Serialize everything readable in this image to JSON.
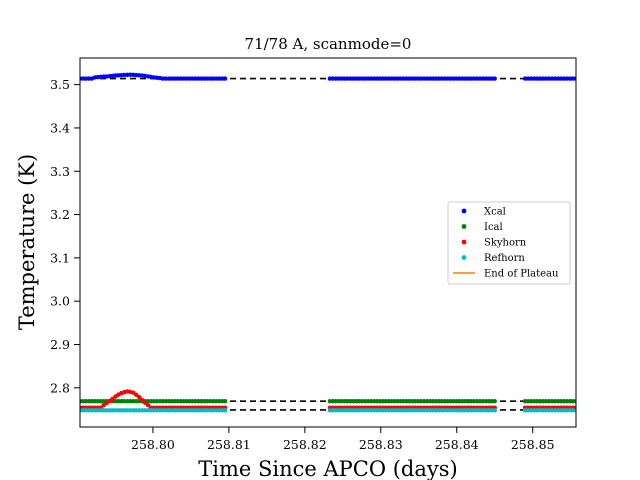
{
  "chart_data": {
    "type": "scatter",
    "title": "71/78 A, scanmode=0",
    "xlabel": "Time Since APCO (days)",
    "ylabel": "Temperature (K)",
    "xlim": [
      258.7904,
      258.8557
    ],
    "ylim": [
      2.7095,
      3.5615
    ],
    "xticks": [
      258.8,
      258.81,
      258.82,
      258.83,
      258.84,
      258.85
    ],
    "xtick_labels": [
      "258.80",
      "258.81",
      "258.82",
      "258.83",
      "258.84",
      "258.85"
    ],
    "yticks": [
      2.8,
      2.9,
      3.0,
      3.1,
      3.2,
      3.3,
      3.4,
      3.5
    ],
    "ytick_labels": [
      "2.8",
      "2.9",
      "3.0",
      "3.1",
      "3.2",
      "3.3",
      "3.4",
      "3.5"
    ],
    "grid": false,
    "legend_position": "center-right",
    "segments": [
      {
        "x_start": 258.7904,
        "x_end": 258.8095,
        "n": 50
      },
      {
        "x_start": 258.8233,
        "x_end": 258.845,
        "n": 57
      },
      {
        "x_start": 258.849,
        "x_end": 258.8557,
        "n": 18
      }
    ],
    "series": [
      {
        "name": "Xcal",
        "color": "#0000ff",
        "baseline": 3.514,
        "bumps": [
          {
            "x": [
              258.792,
              258.793,
              258.794,
              258.795,
              258.796,
              258.797,
              258.798,
              258.799,
              258.8,
              258.801
            ],
            "y": [
              3.516,
              3.518,
              3.519,
              3.521,
              3.522,
              3.523,
              3.522,
              3.52,
              3.517,
              3.515
            ]
          }
        ]
      },
      {
        "name": "Ical",
        "color": "#008000",
        "baseline": 2.769,
        "bumps": []
      },
      {
        "name": "Skyhorn",
        "color": "#ff0000",
        "baseline": 2.754,
        "bumps": [
          {
            "x": [
              258.7935,
              258.7945,
              258.7953,
              258.796,
              258.7967,
              258.7974,
              258.7981,
              258.7988,
              258.7995
            ],
            "y": [
              2.76,
              2.772,
              2.783,
              2.789,
              2.792,
              2.789,
              2.78,
              2.768,
              2.758
            ]
          }
        ]
      },
      {
        "name": "Refhorn",
        "color": "#00bfbf",
        "baseline": 2.748,
        "bumps": []
      }
    ],
    "reference_lines": [
      {
        "y": 3.514,
        "style": "dashed",
        "color": "#000000"
      },
      {
        "y": 2.769,
        "style": "dashed",
        "color": "#000000"
      },
      {
        "y": 2.749,
        "style": "dashed",
        "color": "#000000"
      }
    ],
    "legend": [
      {
        "label": "Xcal",
        "marker": "dot",
        "color": "#0000ff"
      },
      {
        "label": "Ical",
        "marker": "dot",
        "color": "#008000"
      },
      {
        "label": "Skyhorn",
        "marker": "dot",
        "color": "#ff0000"
      },
      {
        "label": "Refhorn",
        "marker": "dot",
        "color": "#00bfbf"
      },
      {
        "label": "End of Plateau",
        "marker": "line",
        "color": "#ff7f0e"
      }
    ]
  }
}
